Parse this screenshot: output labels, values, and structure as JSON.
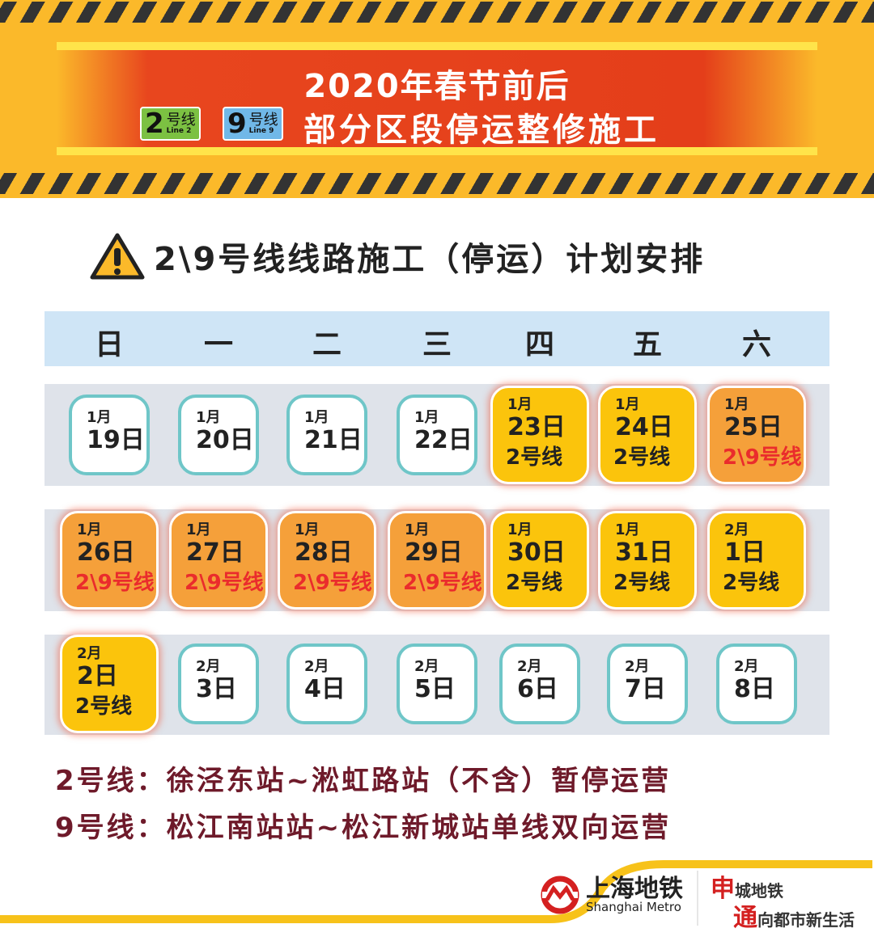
{
  "banner": {
    "title": "2020年春节前后",
    "subtitle": "部分区段停运整修施工",
    "line2": {
      "num": "2",
      "label": "号线",
      "en": "Line 2",
      "color": "#7cc142"
    },
    "line9": {
      "num": "9",
      "label": "号线",
      "en": "Line 9",
      "color": "#70b8e8"
    }
  },
  "heading": {
    "icon": "warning-icon",
    "text": "2\\9号线线路施工（停运）计划安排"
  },
  "weekdays": [
    "日",
    "一",
    "二",
    "三",
    "四",
    "五",
    "六"
  ],
  "weeks": [
    [
      {
        "m": "1月",
        "d": "19日"
      },
      {
        "m": "1月",
        "d": "20日"
      },
      {
        "m": "1月",
        "d": "21日"
      },
      {
        "m": "1月",
        "d": "22日"
      },
      {
        "m": "1月",
        "d": "23日",
        "l": "2号线",
        "type": "y"
      },
      {
        "m": "1月",
        "d": "24日",
        "l": "2号线",
        "type": "y"
      },
      {
        "m": "1月",
        "d": "25日",
        "l": "2\\9号线",
        "type": "o"
      }
    ],
    [
      {
        "m": "1月",
        "d": "26日",
        "l": "2\\9号线",
        "type": "o"
      },
      {
        "m": "1月",
        "d": "27日",
        "l": "2\\9号线",
        "type": "o"
      },
      {
        "m": "1月",
        "d": "28日",
        "l": "2\\9号线",
        "type": "o"
      },
      {
        "m": "1月",
        "d": "29日",
        "l": "2\\9号线",
        "type": "o"
      },
      {
        "m": "1月",
        "d": "30日",
        "l": "2号线",
        "type": "y"
      },
      {
        "m": "1月",
        "d": "31日",
        "l": "2号线",
        "type": "y"
      },
      {
        "m": "2月",
        "d": "1日",
        "l": "2号线",
        "type": "y"
      }
    ],
    [
      {
        "m": "2月",
        "d": "2日",
        "l": "2号线",
        "type": "y"
      },
      {
        "m": "2月",
        "d": "3日"
      },
      {
        "m": "2月",
        "d": "4日"
      },
      {
        "m": "2月",
        "d": "5日"
      },
      {
        "m": "2月",
        "d": "6日"
      },
      {
        "m": "2月",
        "d": "7日"
      },
      {
        "m": "2月",
        "d": "8日"
      }
    ]
  ],
  "notes": [
    "2号线：徐泾东站~淞虹路站（不含）暂停运营",
    "9号线：松江南站站~松江新城站单线双向运营"
  ],
  "footer": {
    "logo_cn": "上海地铁",
    "logo_en": "Shanghai Metro",
    "slogan1_big": "申",
    "slogan1": "城地铁",
    "slogan2_big": "通",
    "slogan2": "向都市新生活"
  },
  "colors": {
    "yellow": "#fbc40c",
    "orange": "#f5a03a",
    "teal_border": "#6fc6c8",
    "red_text": "#ea2c2c"
  }
}
